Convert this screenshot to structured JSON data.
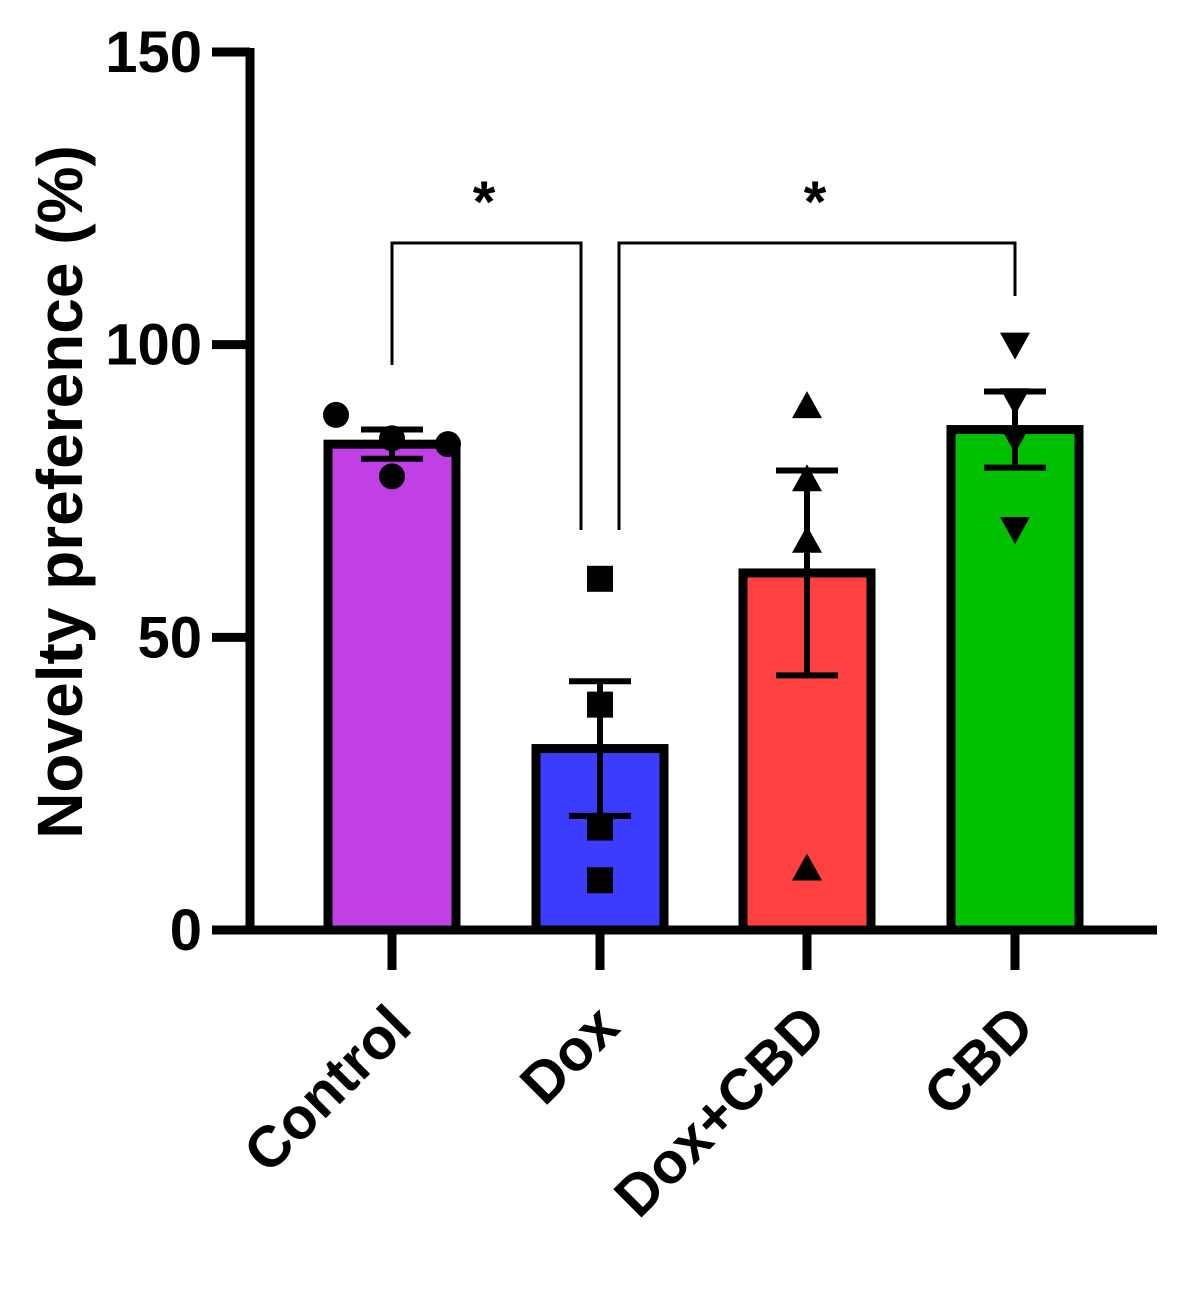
{
  "chart_data": {
    "type": "bar",
    "title": "",
    "xlabel": "",
    "ylabel": "Novelty preference (%)",
    "ylim": [
      0,
      150
    ],
    "yticks": [
      0,
      50,
      100,
      150
    ],
    "ytick_labels": [
      "0",
      "50",
      "100",
      "150"
    ],
    "categories": [
      "Control",
      "Dox",
      "Dox+CBD",
      "CBD"
    ],
    "values": [
      83,
      31,
      61,
      85.5
    ],
    "sem": [
      2.5,
      11.5,
      17.5,
      6.5
    ],
    "colors": [
      "#C140E6",
      "#3C3CFF",
      "#FF4040",
      "#00C000"
    ],
    "point_markers": [
      "circle",
      "square",
      "triangle-up",
      "triangle-down"
    ],
    "points": [
      [
        88,
        84,
        83,
        77.5
      ],
      [
        60,
        38.5,
        17.5,
        8.5
      ],
      [
        89.5,
        77,
        66.5,
        10.5
      ],
      [
        100,
        90.5,
        84,
        68.5
      ]
    ],
    "significance": [
      {
        "from": "Control",
        "to": "Dox",
        "label": "*"
      },
      {
        "from": "Dox",
        "to": "CBD",
        "label": "*"
      }
    ],
    "grid": false,
    "legend": "none"
  }
}
